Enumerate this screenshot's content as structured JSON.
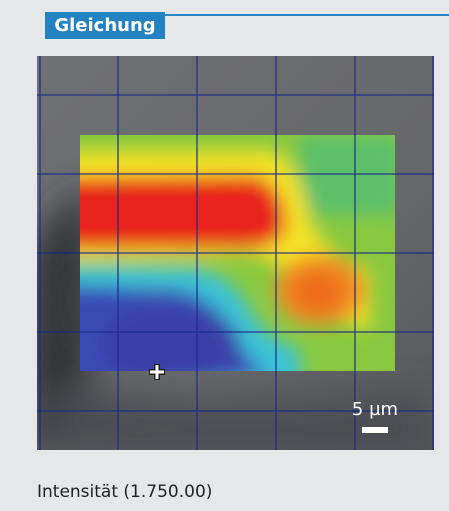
{
  "tab": {
    "label": "Gleichung"
  },
  "image": {
    "scale_label": "5 µm"
  },
  "status": {
    "label": "Intensität (1.750.00)"
  }
}
